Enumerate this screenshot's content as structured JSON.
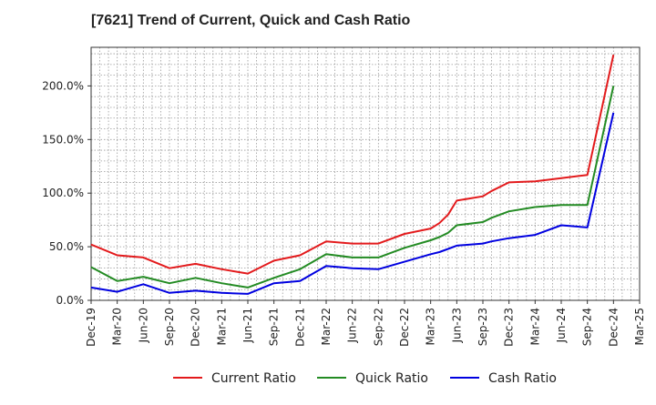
{
  "chart_data": {
    "type": "line",
    "title": "[7621]  Trend of Current, Quick and Cash Ratio",
    "xlabel": "",
    "ylabel": "",
    "x": [
      "Dec-19",
      "Mar-20",
      "Jun-20",
      "Sep-20",
      "Dec-20",
      "Mar-21",
      "Jun-21",
      "Sep-21",
      "Dec-21",
      "Mar-22",
      "Jun-22",
      "Sep-22",
      "Dec-22",
      "Mar-23",
      "Apr-23",
      "May-23",
      "Jun-23",
      "Sep-23",
      "Oct-23",
      "Dec-23",
      "Mar-24",
      "Jun-24",
      "Sep-24",
      "Dec-24"
    ],
    "x_ticks": [
      "Dec-19",
      "Mar-20",
      "Jun-20",
      "Sep-20",
      "Dec-20",
      "Mar-21",
      "Jun-21",
      "Sep-21",
      "Dec-21",
      "Mar-22",
      "Jun-22",
      "Sep-22",
      "Dec-22",
      "Mar-23",
      "Jun-23",
      "Sep-23",
      "Dec-23",
      "Mar-24",
      "Jun-24",
      "Sep-24",
      "Dec-24",
      "Mar-25"
    ],
    "y_ticks": [
      "0.0%",
      "50.0%",
      "100.0%",
      "150.0%",
      "200.0%"
    ],
    "ylim": [
      0,
      236
    ],
    "grid": true,
    "legend_position": "bottom",
    "series": [
      {
        "name": "Current Ratio",
        "color": "#e31a1c",
        "values": [
          52,
          42,
          40,
          30,
          34,
          29,
          25,
          37,
          42,
          55,
          53,
          53,
          62,
          67,
          72,
          80,
          93,
          97,
          102,
          110,
          111,
          114,
          117,
          229
        ]
      },
      {
        "name": "Quick Ratio",
        "color": "#238b23",
        "values": [
          31,
          18,
          22,
          16,
          21,
          16,
          12,
          21,
          29,
          43,
          40,
          40,
          49,
          56,
          59,
          63,
          70,
          73,
          77,
          83,
          87,
          89,
          89,
          200
        ]
      },
      {
        "name": "Cash Ratio",
        "color": "#0000e0",
        "values": [
          12,
          8,
          15,
          7,
          9,
          7,
          6,
          16,
          18,
          32,
          30,
          29,
          36,
          43,
          45,
          48,
          51,
          53,
          55,
          58,
          61,
          70,
          68,
          175
        ]
      }
    ]
  }
}
